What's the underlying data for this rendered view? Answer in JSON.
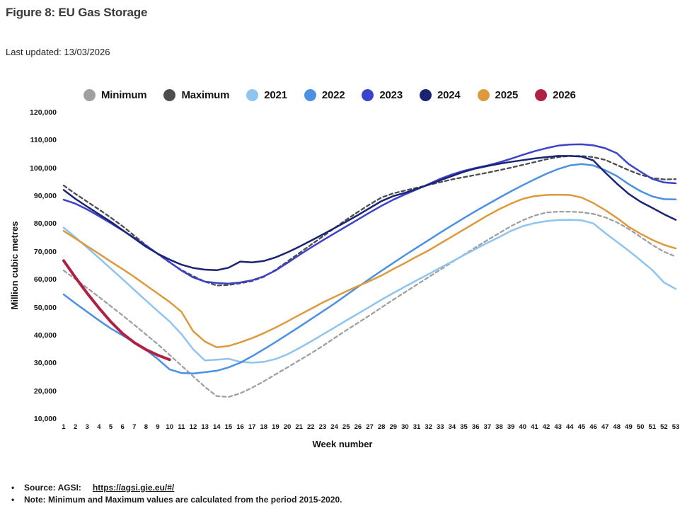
{
  "header": {
    "title": "Figure 8: EU Gas Storage",
    "last_updated": "Last updated: 13/03/2026"
  },
  "legend": [
    {
      "label": "Minimum",
      "color": "#a0a0a0"
    },
    {
      "label": "Maximum",
      "color": "#4d4d4d"
    },
    {
      "label": "2021",
      "color": "#8fc4ef"
    },
    {
      "label": "2022",
      "color": "#4b90e2"
    },
    {
      "label": "2023",
      "color": "#3c43c8"
    },
    {
      "label": "2024",
      "color": "#1b2472"
    },
    {
      "label": "2025",
      "color": "#dd9a3d"
    },
    {
      "label": "2026",
      "color": "#b02244"
    }
  ],
  "chart_data": {
    "type": "line",
    "title": "Figure 8: EU Gas Storage",
    "xlabel": "Week number",
    "ylabel": "Million cubic metres",
    "ylim": [
      10000,
      120000
    ],
    "grid": false,
    "legend_position": "top",
    "x_ticks": [
      1,
      2,
      3,
      4,
      5,
      6,
      7,
      8,
      9,
      10,
      11,
      12,
      13,
      14,
      15,
      16,
      17,
      18,
      19,
      20,
      21,
      22,
      23,
      24,
      25,
      26,
      27,
      28,
      29,
      30,
      31,
      32,
      33,
      34,
      35,
      36,
      37,
      38,
      39,
      40,
      41,
      42,
      43,
      44,
      45,
      46,
      47,
      48,
      49,
      50,
      51,
      52,
      53
    ],
    "y_ticks": [
      {
        "value": 120000,
        "label": "120,000"
      },
      {
        "value": 110000,
        "label": "110,000"
      },
      {
        "value": 100000,
        "label": "100,000"
      },
      {
        "value": 90000,
        "label": "90,000"
      },
      {
        "value": 80000,
        "label": "80,000"
      },
      {
        "value": 70000,
        "label": "70,000"
      },
      {
        "value": 60000,
        "label": "60,000"
      },
      {
        "value": 50000,
        "label": "50,000"
      },
      {
        "value": 40000,
        "label": "40,000"
      },
      {
        "value": 30000,
        "label": "30,000"
      },
      {
        "value": 20000,
        "label": "20,000"
      },
      {
        "value": 10000,
        "label": "10,000"
      }
    ],
    "series": [
      {
        "name": "Minimum",
        "color": "#a0a0a0",
        "dashed": true,
        "width": 2.3,
        "values": [
          63300,
          60200,
          57000,
          53800,
          50500,
          47200,
          43800,
          40300,
          36800,
          33000,
          29200,
          25300,
          21500,
          18200,
          17900,
          19200,
          21200,
          23500,
          26000,
          28500,
          31000,
          33500,
          36200,
          39000,
          41800,
          44500,
          47200,
          50000,
          52800,
          55500,
          58200,
          60900,
          63600,
          66300,
          69000,
          71600,
          74200,
          76700,
          79200,
          81300,
          83000,
          84100,
          84400,
          84400,
          84200,
          83600,
          82400,
          80600,
          78200,
          75400,
          72500,
          70000,
          68300
        ]
      },
      {
        "name": "Maximum",
        "color": "#4d4d4d",
        "dashed": true,
        "width": 2.3,
        "values": [
          93800,
          90800,
          88000,
          85200,
          82300,
          79200,
          75800,
          72400,
          69200,
          66200,
          63500,
          61300,
          59300,
          57900,
          58100,
          58700,
          59500,
          61000,
          63500,
          66500,
          69500,
          72500,
          75500,
          78500,
          81500,
          84300,
          87000,
          89500,
          91000,
          92000,
          93000,
          94000,
          95000,
          96000,
          96800,
          97600,
          98400,
          99300,
          100200,
          101200,
          102200,
          103200,
          104000,
          104400,
          104400,
          104000,
          103000,
          101200,
          99300,
          97700,
          96500,
          96000,
          96100
        ]
      },
      {
        "name": "2021",
        "color": "#8fc4ef",
        "dashed": false,
        "width": 2.5,
        "values": [
          78700,
          75200,
          71500,
          67800,
          64000,
          60200,
          56300,
          52500,
          48700,
          45000,
          40500,
          35000,
          31000,
          31300,
          31600,
          30500,
          30200,
          30500,
          31500,
          33200,
          35400,
          37800,
          40300,
          42800,
          45300,
          47800,
          50300,
          52800,
          55200,
          57500,
          59800,
          62000,
          64300,
          66500,
          68800,
          71000,
          73200,
          75300,
          77500,
          79200,
          80300,
          81000,
          81400,
          81500,
          81300,
          80200,
          76800,
          73600,
          70400,
          67000,
          63500,
          59000,
          56700
        ]
      },
      {
        "name": "2022",
        "color": "#4b90e2",
        "dashed": false,
        "width": 2.5,
        "values": [
          54700,
          51500,
          48400,
          45400,
          42500,
          40000,
          37500,
          34800,
          31500,
          27800,
          26500,
          26300,
          26800,
          27300,
          28500,
          30200,
          32500,
          35000,
          37600,
          40300,
          43000,
          45800,
          48600,
          51400,
          54400,
          57400,
          60300,
          63200,
          66000,
          68800,
          71500,
          74200,
          76900,
          79500,
          82100,
          84600,
          87000,
          89400,
          91700,
          93900,
          96000,
          98000,
          99700,
          101000,
          101500,
          101000,
          99300,
          97200,
          94300,
          91800,
          89900,
          88900,
          88800
        ]
      },
      {
        "name": "2023",
        "color": "#3c43c8",
        "dashed": false,
        "width": 2.5,
        "values": [
          88700,
          87300,
          85200,
          82800,
          80300,
          77700,
          75000,
          72200,
          69300,
          66300,
          63300,
          60800,
          59300,
          58800,
          58600,
          59000,
          59800,
          61200,
          63300,
          66000,
          68800,
          71500,
          74100,
          76600,
          79100,
          81600,
          84100,
          86500,
          88700,
          90600,
          92400,
          94300,
          96200,
          97800,
          99100,
          100100,
          101000,
          102100,
          103400,
          104800,
          106100,
          107200,
          108100,
          108500,
          108600,
          108200,
          107200,
          105400,
          101500,
          98800,
          96200,
          94900,
          94600
        ]
      },
      {
        "name": "2024",
        "color": "#1b2472",
        "dashed": false,
        "width": 2.5,
        "values": [
          92200,
          89000,
          86200,
          83500,
          80800,
          77800,
          74800,
          71800,
          69300,
          67200,
          65400,
          64200,
          63600,
          63400,
          64300,
          66500,
          66200,
          66700,
          68000,
          69800,
          71800,
          74000,
          76200,
          78500,
          80800,
          83200,
          85700,
          88200,
          90000,
          91200,
          92600,
          94100,
          95700,
          97200,
          98700,
          99900,
          100800,
          101600,
          102300,
          102900,
          103500,
          104000,
          104400,
          104400,
          104200,
          102800,
          98500,
          94500,
          90800,
          88000,
          85800,
          83500,
          81500
        ]
      },
      {
        "name": "2025",
        "color": "#dd9a3d",
        "dashed": false,
        "width": 2.5,
        "values": [
          77500,
          74800,
          72000,
          69300,
          66500,
          63800,
          61000,
          58000,
          55000,
          52000,
          48500,
          41500,
          37800,
          35700,
          36200,
          37500,
          39000,
          40800,
          42800,
          45000,
          47300,
          49500,
          51800,
          53800,
          55800,
          57700,
          59500,
          61500,
          63800,
          66000,
          68300,
          70500,
          73000,
          75500,
          78000,
          80500,
          83000,
          85300,
          87300,
          89000,
          90000,
          90400,
          90500,
          90400,
          89500,
          87500,
          85000,
          82200,
          79000,
          76500,
          74300,
          72500,
          71200
        ]
      },
      {
        "name": "2026",
        "color": "#b02244",
        "dashed": false,
        "width": 4,
        "values": [
          66800,
          60800,
          55100,
          49800,
          44900,
          40700,
          37400,
          34900,
          32900,
          31300
        ]
      }
    ]
  },
  "footer": {
    "bullet": "•",
    "source_label": "Source: AGSI:",
    "source_link": "https://agsi.gie.eu/#/",
    "note": "Note: Minimum and Maximum values are calculated from the period 2015-2020."
  }
}
